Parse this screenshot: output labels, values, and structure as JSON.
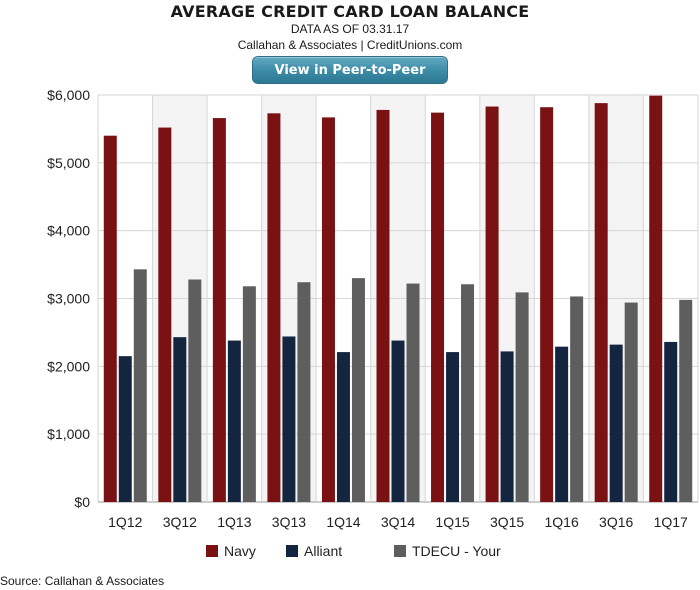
{
  "header": {
    "title": "AVERAGE CREDIT CARD LOAN BALANCE",
    "subtitle": "DATA AS OF 03.31.17",
    "attribution": "Callahan & Associates | CreditUnions.com",
    "cta_label": "View in Peer-to-Peer"
  },
  "footer": {
    "source": "Source: Callahan & Associates"
  },
  "chart_data": {
    "type": "bar",
    "title": "AVERAGE CREDIT CARD LOAN BALANCE",
    "xlabel": "",
    "ylabel": "",
    "categories": [
      "1Q12",
      "3Q12",
      "1Q13",
      "3Q13",
      "1Q14",
      "3Q14",
      "1Q15",
      "3Q15",
      "1Q16",
      "3Q16",
      "1Q17"
    ],
    "series": [
      {
        "name": "Navy",
        "color": "#7a1113",
        "values": [
          5400,
          5520,
          5660,
          5730,
          5670,
          5780,
          5740,
          5830,
          5820,
          5880,
          5990
        ]
      },
      {
        "name": "Alliant",
        "color": "#14263f",
        "values": [
          2150,
          2430,
          2380,
          2440,
          2210,
          2380,
          2210,
          2220,
          2290,
          2320,
          2360
        ]
      },
      {
        "name": "TDECU - Your",
        "color": "#5e5e5e",
        "values": [
          3430,
          3280,
          3180,
          3240,
          3300,
          3220,
          3210,
          3090,
          3030,
          2940,
          2980
        ]
      }
    ],
    "ylim": [
      0,
      6000
    ],
    "yticks": [
      0,
      1000,
      2000,
      3000,
      4000,
      5000,
      6000
    ],
    "ytick_labels": [
      "$0",
      "$1,000",
      "$2,000",
      "$3,000",
      "$4,000",
      "$5,000",
      "$6,000"
    ],
    "grid": true,
    "legend_position": "bottom"
  }
}
